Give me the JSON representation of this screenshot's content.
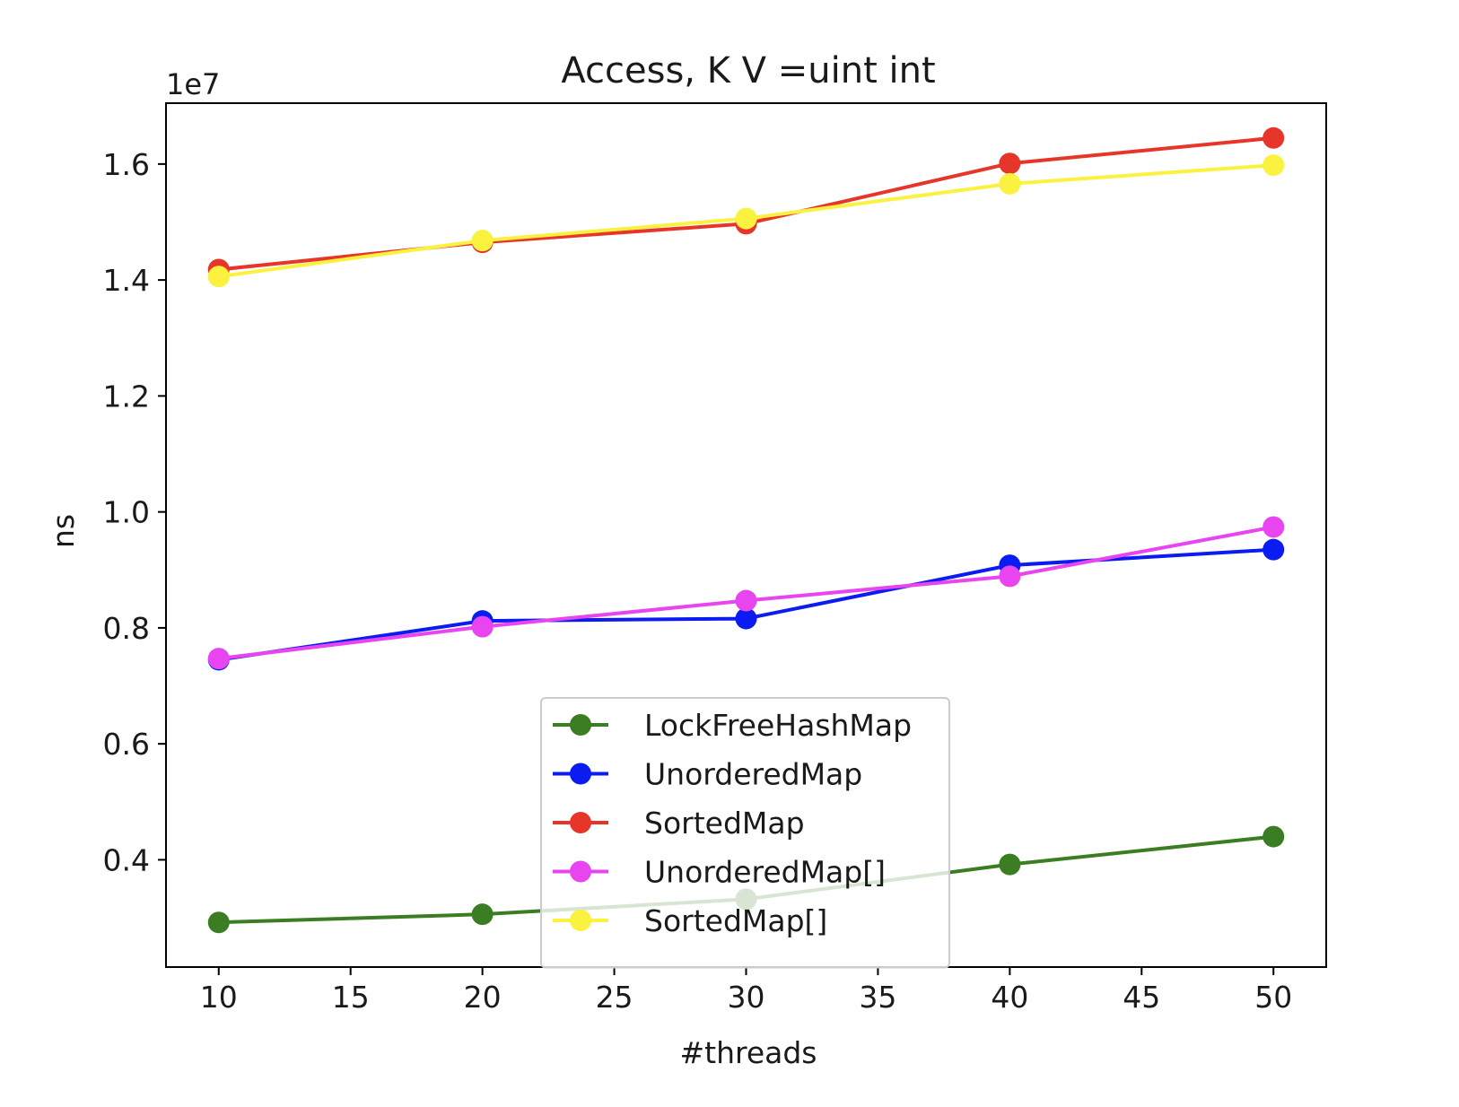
{
  "chart_data": {
    "type": "line",
    "title": "Access, K V =uint int",
    "xlabel": "#threads",
    "ylabel": "ns",
    "y_scale_label": "1e7",
    "xlim": [
      8,
      52
    ],
    "ylim": [
      0.215,
      1.705
    ],
    "x_ticks": [
      10,
      15,
      20,
      25,
      30,
      35,
      40,
      45,
      50
    ],
    "y_ticks": [
      0.4,
      0.6,
      0.8,
      1.0,
      1.2,
      1.4,
      1.6
    ],
    "grid": false,
    "legend_position": "lower-center",
    "x": [
      10,
      20,
      30,
      40,
      50
    ],
    "series": [
      {
        "name": "LockFreeHashMap",
        "color": "#3a7d22",
        "values": [
          0.292,
          0.306,
          0.332,
          0.392,
          0.44
        ]
      },
      {
        "name": "UnorderedMap",
        "color": "#0a1cf2",
        "values": [
          0.745,
          0.812,
          0.816,
          0.908,
          0.935
        ]
      },
      {
        "name": "SortedMap",
        "color": "#e8352a",
        "values": [
          1.418,
          1.465,
          1.497,
          1.601,
          1.645
        ]
      },
      {
        "name": "UnorderedMap[]",
        "color": "#e844f0",
        "values": [
          0.747,
          0.802,
          0.847,
          0.889,
          0.974
        ]
      },
      {
        "name": "SortedMap[]",
        "color": "#fbf23f",
        "values": [
          1.406,
          1.468,
          1.506,
          1.566,
          1.598
        ]
      }
    ]
  }
}
